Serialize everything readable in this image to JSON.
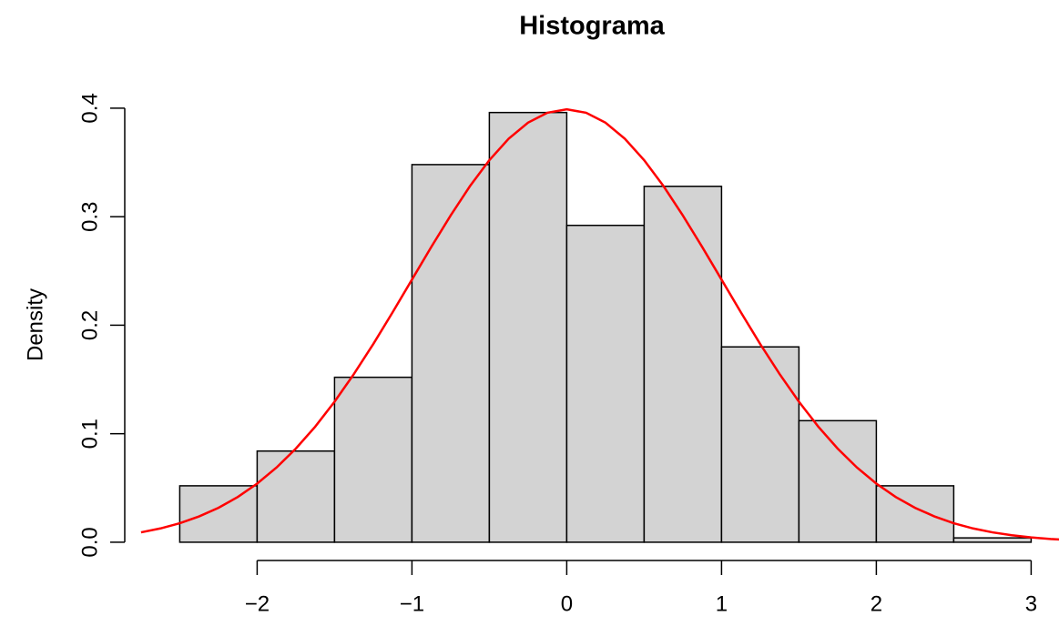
{
  "chart_data": {
    "type": "histogram",
    "title": "Histograma",
    "y_label": "Density",
    "bins": [
      -2.5,
      -2,
      -1.5,
      -1,
      -0.5,
      0,
      0.5,
      1,
      1.5,
      2,
      2.5,
      3
    ],
    "values": [
      0.052,
      0.084,
      0.152,
      0.348,
      0.396,
      0.292,
      0.328,
      0.18,
      0.112,
      0.052,
      0.004
    ],
    "color": "#d3d3d3",
    "xlim": [
      -2.72,
      3.18
    ],
    "ylim": [
      -0.016,
      0.415
    ],
    "xticks": [
      -2,
      -1,
      0,
      1,
      2,
      3
    ],
    "yticks": [
      {
        "value": 0,
        "label": "0.0"
      },
      0.1,
      0.2,
      0.3,
      0.4
    ],
    "curve": {
      "type": "line",
      "color": "#ff0000",
      "x": [
        -2.75,
        -2.625,
        -2.5,
        -2.375,
        -2.25,
        -2.125,
        -2,
        -1.875,
        -1.75,
        -1.625,
        -1.5,
        -1.375,
        -1.25,
        -1.125,
        -1,
        -0.875,
        -0.75,
        -0.625,
        -0.5,
        -0.375,
        -0.25,
        -0.125,
        0,
        0.125,
        0.25,
        0.375,
        0.5,
        0.625,
        0.75,
        0.875,
        1,
        1.125,
        1.25,
        1.375,
        1.5,
        1.625,
        1.75,
        1.875,
        2,
        2.125,
        2.25,
        2.375,
        2.5,
        2.625,
        2.75,
        2.875,
        3,
        3.125,
        3.25
      ],
      "values": [
        0.0091,
        0.0127,
        0.0175,
        0.0238,
        0.0317,
        0.0417,
        0.054,
        0.0688,
        0.0863,
        0.1065,
        0.1295,
        0.155,
        0.1826,
        0.2119,
        0.242,
        0.2721,
        0.3011,
        0.3282,
        0.3521,
        0.3719,
        0.3867,
        0.3958,
        0.3989,
        0.3958,
        0.3867,
        0.3719,
        0.3521,
        0.3282,
        0.3011,
        0.2721,
        0.242,
        0.2119,
        0.1826,
        0.155,
        0.1295,
        0.1065,
        0.0863,
        0.0688,
        0.054,
        0.0417,
        0.0317,
        0.0238,
        0.0175,
        0.0127,
        0.0091,
        0.0064,
        0.0044,
        0.003,
        0.002
      ]
    }
  }
}
